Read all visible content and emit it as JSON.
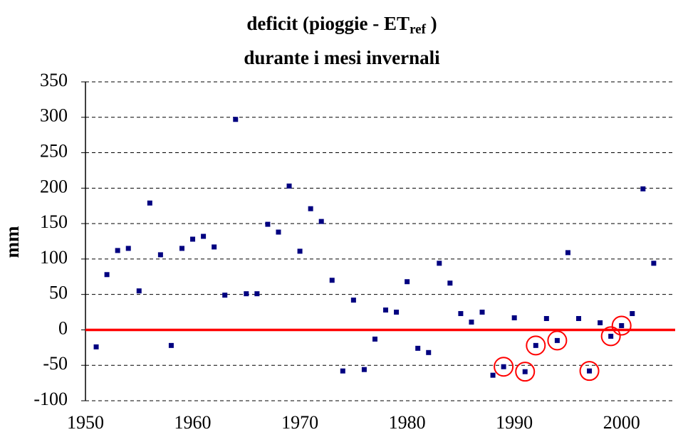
{
  "chart_data": {
    "type": "scatter",
    "title": {
      "text": "deficit (pioggie - ET",
      "sub": "ref",
      "tail": " )"
    },
    "subtitle": "durante i mesi invernali",
    "y_label": "mm",
    "x": [
      1951,
      1952,
      1953,
      1954,
      1955,
      1956,
      1957,
      1958,
      1959,
      1960,
      1961,
      1962,
      1963,
      1964,
      1965,
      1966,
      1967,
      1968,
      1969,
      1970,
      1971,
      1972,
      1973,
      1974,
      1975,
      1976,
      1977,
      1978,
      1979,
      1980,
      1981,
      1982,
      1983,
      1984,
      1985,
      1986,
      1987,
      1988,
      1989,
      1990,
      1991,
      1992,
      1993,
      1994,
      1995,
      1996,
      1997,
      1998,
      1999,
      2000,
      2001,
      2002,
      2003
    ],
    "values": [
      -24,
      78,
      112,
      115,
      55,
      179,
      106,
      -22,
      115,
      128,
      132,
      117,
      49,
      297,
      51,
      51,
      149,
      138,
      203,
      111,
      171,
      153,
      70,
      -58,
      42,
      -56,
      -13,
      28,
      25,
      68,
      -26,
      -32,
      94,
      66,
      23,
      11,
      25,
      -64,
      -52,
      17,
      -59,
      -22,
      16,
      -15,
      109,
      16,
      -58,
      10,
      -9,
      6,
      23,
      199,
      94
    ],
    "color": "#000080",
    "highlight": [
      1989,
      1991,
      1992,
      1994,
      1997,
      1999,
      2000
    ],
    "highlight_color": "#ff0000",
    "reference_line": {
      "value": 0,
      "color": "#ff0000"
    },
    "xlim": [
      1950,
      2005
    ],
    "xticks": [
      1950,
      1960,
      1970,
      1980,
      1990,
      2000
    ],
    "ylim": [
      -100,
      350
    ],
    "yticks": [
      -100,
      -50,
      0,
      50,
      100,
      150,
      200,
      250,
      300,
      350
    ],
    "grid": true
  }
}
